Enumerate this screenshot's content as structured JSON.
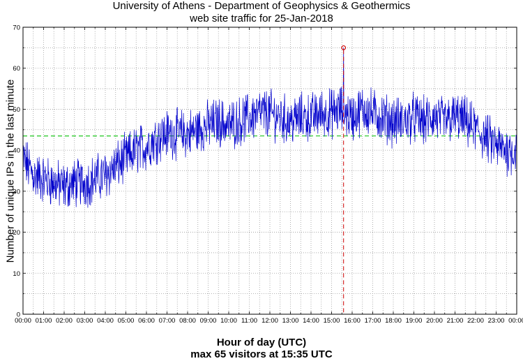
{
  "chart_data": {
    "type": "line",
    "title": "University of Athens - Department of Geophysics & Geothermics",
    "subtitle": "web site traffic for 25-Jan-2018",
    "xlabel": "Hour of day (UTC)",
    "xlabel_note": "max 65 visitors at 15:35 UTC",
    "ylabel": "Number of unique IPs in the last minute",
    "xlim": [
      0,
      24
    ],
    "ylim": [
      0,
      70
    ],
    "x_ticks": [
      "00:00",
      "01:00",
      "02:00",
      "03:00",
      "04:00",
      "05:00",
      "06:00",
      "07:00",
      "08:00",
      "09:00",
      "10:00",
      "11:00",
      "12:00",
      "13:00",
      "14:00",
      "15:00",
      "16:00",
      "17:00",
      "18:00",
      "19:00",
      "20:00",
      "21:00",
      "22:00",
      "23:00",
      "00:00"
    ],
    "y_ticks": [
      "0",
      "10",
      "20",
      "30",
      "40",
      "50",
      "60",
      "70"
    ],
    "grid": true,
    "series_color": "#0000cc",
    "mean_color": "#33cc33",
    "max_color": "#cc0000",
    "mean_value": 43.5,
    "max": {
      "value": 65,
      "time": "15:35",
      "hour": 15.583
    },
    "hourly_profile": {
      "hours": [
        0,
        0.5,
        1,
        1.5,
        2,
        2.5,
        3,
        3.5,
        4,
        4.5,
        5,
        5.5,
        6,
        6.5,
        7,
        7.5,
        8,
        8.5,
        9,
        9.5,
        10,
        10.5,
        11,
        11.5,
        12,
        12.5,
        13,
        13.5,
        14,
        14.5,
        15,
        15.5,
        16,
        16.5,
        17,
        17.5,
        18,
        18.5,
        19,
        19.5,
        20,
        20.5,
        21,
        21.5,
        22,
        22.5,
        23,
        23.5,
        24
      ],
      "values": [
        38,
        34,
        33,
        32,
        31,
        32,
        32,
        33,
        34,
        36,
        38,
        40,
        41,
        43,
        44,
        44,
        44,
        45,
        46,
        47,
        46,
        47,
        48,
        49,
        49,
        48,
        47,
        48,
        48,
        49,
        49,
        50,
        48,
        50,
        49,
        48,
        47,
        47,
        48,
        47,
        48,
        47,
        48,
        47,
        45,
        43,
        41,
        40,
        40
      ],
      "noise_amplitude": 5
    }
  }
}
